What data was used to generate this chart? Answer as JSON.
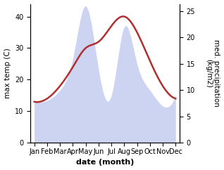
{
  "months": [
    "Jan",
    "Feb",
    "Mar",
    "Apr",
    "May",
    "Jun",
    "Jul",
    "Aug",
    "Sep",
    "Oct",
    "Nov",
    "Dec"
  ],
  "temp_max": [
    13,
    14,
    18,
    24,
    30,
    32,
    37,
    40,
    35,
    26,
    18,
    14
  ],
  "precip": [
    8,
    8,
    10,
    16,
    26,
    14,
    9,
    22,
    15,
    10,
    7,
    9
  ],
  "temp_color": "#b03030",
  "precip_color": "#c5cdf0",
  "precip_fill_alpha": 0.85,
  "temp_ylim": [
    0,
    44
  ],
  "precip_ylim": [
    0,
    26.4
  ],
  "temp_yticks": [
    0,
    10,
    20,
    30,
    40
  ],
  "precip_yticks": [
    0,
    5,
    10,
    15,
    20,
    25
  ],
  "xlabel": "date (month)",
  "ylabel_left": "max temp (C)",
  "ylabel_right": "med. precipitation\n(kg/m2)",
  "xlabel_fontsize": 8,
  "ylabel_fontsize": 7.5,
  "tick_fontsize": 7
}
